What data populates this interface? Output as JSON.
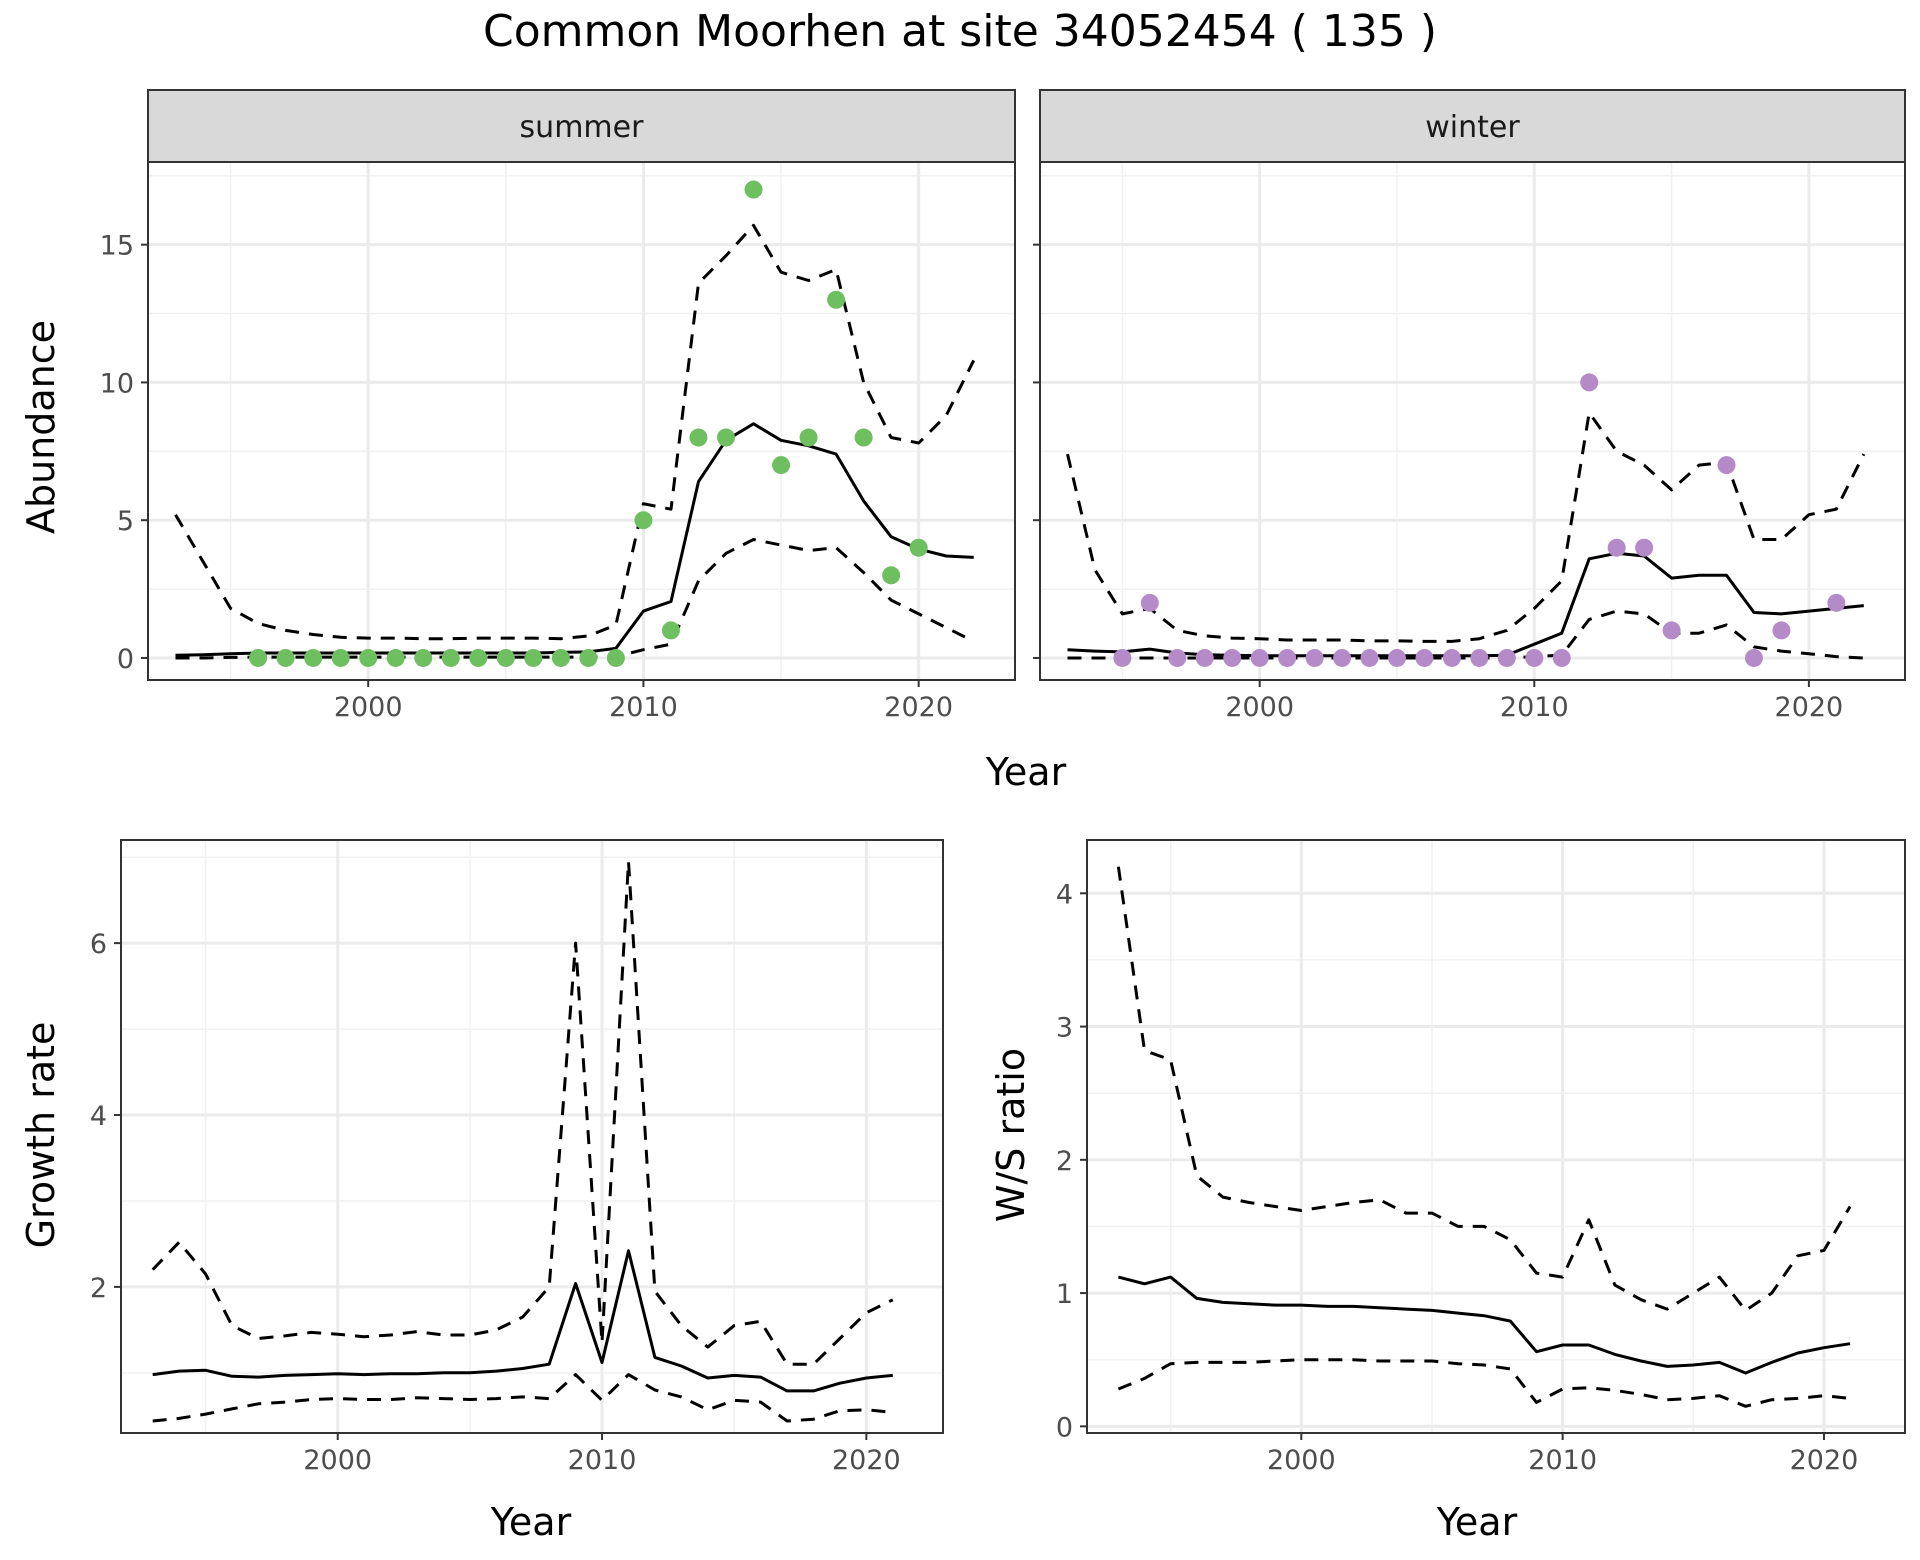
{
  "title": "Common Moorhen at site 34052454 ( 135 )",
  "chart_data": [
    {
      "type": "line",
      "facet": "summer",
      "xlabel": "Year",
      "ylabel": "Abundance",
      "xlim": [
        1992,
        2023.5
      ],
      "ylim": [
        -0.8,
        18
      ],
      "x_ticks": [
        2000,
        2010,
        2020
      ],
      "y_ticks": [
        0,
        5,
        10,
        15
      ],
      "grid": true,
      "point_color": "#6dbf5f",
      "fit": {
        "x": [
          1993,
          1994,
          1995,
          1996,
          1997,
          1998,
          1999,
          2000,
          2001,
          2002,
          2003,
          2004,
          2005,
          2006,
          2007,
          2008,
          2009,
          2010,
          2011,
          2012,
          2013,
          2014,
          2015,
          2016,
          2017,
          2018,
          2019,
          2020,
          2021,
          2022
        ],
        "y": [
          0.1,
          0.12,
          0.15,
          0.18,
          0.18,
          0.18,
          0.18,
          0.18,
          0.18,
          0.18,
          0.18,
          0.18,
          0.18,
          0.18,
          0.2,
          0.22,
          0.35,
          1.7,
          2.05,
          6.4,
          7.9,
          8.5,
          7.9,
          7.7,
          7.4,
          5.7,
          4.4,
          3.95,
          3.7,
          3.65
        ]
      },
      "upper": {
        "x": [
          1993,
          1994,
          1995,
          1996,
          1997,
          1998,
          1999,
          2000,
          2001,
          2002,
          2003,
          2004,
          2005,
          2006,
          2007,
          2008,
          2009,
          2010,
          2011,
          2012,
          2013,
          2014,
          2015,
          2016,
          2017,
          2018,
          2019,
          2020,
          2021,
          2022
        ],
        "y": [
          5.2,
          3.5,
          1.8,
          1.25,
          1.0,
          0.85,
          0.75,
          0.72,
          0.72,
          0.7,
          0.7,
          0.72,
          0.72,
          0.72,
          0.7,
          0.8,
          1.2,
          5.6,
          5.4,
          13.6,
          14.6,
          15.7,
          14.0,
          13.7,
          14.1,
          10.0,
          8.0,
          7.8,
          8.8,
          10.8
        ]
      },
      "lower": {
        "x": [
          1993,
          1994,
          1995,
          1996,
          1997,
          1998,
          1999,
          2000,
          2001,
          2002,
          2003,
          2004,
          2005,
          2006,
          2007,
          2008,
          2009,
          2010,
          2011,
          2012,
          2013,
          2014,
          2015,
          2016,
          2017,
          2018,
          2019,
          2020,
          2021,
          2022
        ],
        "y": [
          0.0,
          0.0,
          0.02,
          0.03,
          0.03,
          0.03,
          0.03,
          0.03,
          0.03,
          0.03,
          0.03,
          0.03,
          0.03,
          0.03,
          0.03,
          0.03,
          0.05,
          0.3,
          0.5,
          2.8,
          3.8,
          4.3,
          4.1,
          3.9,
          4.0,
          3.1,
          2.1,
          1.6,
          1.1,
          0.6
        ]
      },
      "points": {
        "x": [
          1996,
          1997,
          1998,
          1999,
          2000,
          2001,
          2002,
          2003,
          2004,
          2005,
          2006,
          2007,
          2008,
          2009,
          2010,
          2011,
          2012,
          2013,
          2014,
          2015,
          2016,
          2017,
          2018,
          2019,
          2020
        ],
        "y": [
          0,
          0,
          0,
          0,
          0,
          0,
          0,
          0,
          0,
          0,
          0,
          0,
          0,
          0,
          5,
          1,
          8,
          8,
          17,
          7,
          8,
          13,
          8,
          3,
          4
        ]
      }
    },
    {
      "type": "line",
      "facet": "winter",
      "xlabel": "Year",
      "ylabel": "Abundance",
      "xlim": [
        1992,
        2023.5
      ],
      "ylim": [
        -0.8,
        18
      ],
      "x_ticks": [
        2000,
        2010,
        2020
      ],
      "y_ticks": [
        0,
        5,
        10,
        15
      ],
      "grid": true,
      "point_color": "#b58ac8",
      "fit": {
        "x": [
          1993,
          1994,
          1995,
          1996,
          1997,
          1998,
          1999,
          2000,
          2001,
          2002,
          2003,
          2004,
          2005,
          2006,
          2007,
          2008,
          2009,
          2010,
          2011,
          2012,
          2013,
          2014,
          2015,
          2016,
          2017,
          2018,
          2019,
          2020,
          2021,
          2022
        ],
        "y": [
          0.3,
          0.25,
          0.22,
          0.32,
          0.18,
          0.12,
          0.1,
          0.08,
          0.08,
          0.08,
          0.08,
          0.08,
          0.08,
          0.08,
          0.08,
          0.08,
          0.1,
          0.5,
          0.9,
          3.6,
          3.8,
          3.7,
          2.9,
          3.0,
          3.0,
          1.65,
          1.6,
          1.7,
          1.8,
          1.9
        ]
      },
      "upper": {
        "x": [
          1993,
          1994,
          1995,
          1996,
          1997,
          1998,
          1999,
          2000,
          2001,
          2002,
          2003,
          2004,
          2005,
          2006,
          2007,
          2008,
          2009,
          2010,
          2011,
          2012,
          2013,
          2014,
          2015,
          2016,
          2017,
          2018,
          2019,
          2020,
          2021,
          2022
        ],
        "y": [
          7.4,
          3.2,
          1.6,
          1.8,
          1.0,
          0.8,
          0.72,
          0.7,
          0.65,
          0.65,
          0.65,
          0.62,
          0.62,
          0.6,
          0.6,
          0.7,
          1.0,
          1.8,
          2.8,
          8.9,
          7.5,
          7.0,
          6.1,
          7.0,
          7.1,
          4.3,
          4.3,
          5.2,
          5.4,
          7.4
        ]
      },
      "lower": {
        "x": [
          1993,
          1994,
          1995,
          1996,
          1997,
          1998,
          1999,
          2000,
          2001,
          2002,
          2003,
          2004,
          2005,
          2006,
          2007,
          2008,
          2009,
          2010,
          2011,
          2012,
          2013,
          2014,
          2015,
          2016,
          2017,
          2018,
          2019,
          2020,
          2021,
          2022
        ],
        "y": [
          0.0,
          0.0,
          0.0,
          0.0,
          0.0,
          0.0,
          0.0,
          0.0,
          0.0,
          0.0,
          0.0,
          0.0,
          0.0,
          0.0,
          0.0,
          0.0,
          0.0,
          0.05,
          0.1,
          1.4,
          1.7,
          1.6,
          0.9,
          0.9,
          1.2,
          0.4,
          0.25,
          0.15,
          0.05,
          0.0
        ]
      },
      "points": {
        "x": [
          1995,
          1996,
          1997,
          1998,
          1999,
          2000,
          2001,
          2002,
          2003,
          2004,
          2005,
          2006,
          2007,
          2008,
          2009,
          2010,
          2011,
          2012,
          2013,
          2014,
          2015,
          2017,
          2018,
          2019,
          2021
        ],
        "y": [
          0,
          2,
          0,
          0,
          0,
          0,
          0,
          0,
          0,
          0,
          0,
          0,
          0,
          0,
          0,
          0,
          0,
          10,
          4,
          4,
          1,
          7,
          0,
          1,
          2
        ]
      }
    },
    {
      "type": "line",
      "xlabel": "Year",
      "ylabel": "Growth rate",
      "xlim": [
        1991.8,
        2022.9
      ],
      "ylim": [
        0.3,
        7.2
      ],
      "x_ticks": [
        2000,
        2010,
        2020
      ],
      "y_ticks": [
        2,
        4,
        6
      ],
      "grid": true,
      "fit": {
        "x": [
          1993,
          1994,
          1995,
          1996,
          1997,
          1998,
          1999,
          2000,
          2001,
          2002,
          2003,
          2004,
          2005,
          2006,
          2007,
          2008,
          2009,
          2010,
          2011,
          2012,
          2013,
          2014,
          2015,
          2016,
          2017,
          2018,
          2019,
          2020,
          2021
        ],
        "y": [
          0.98,
          1.02,
          1.03,
          0.96,
          0.95,
          0.97,
          0.98,
          0.99,
          0.98,
          0.99,
          0.99,
          1.0,
          1.0,
          1.02,
          1.05,
          1.1,
          2.04,
          1.12,
          2.42,
          1.18,
          1.08,
          0.94,
          0.97,
          0.95,
          0.79,
          0.79,
          0.88,
          0.94,
          0.97
        ]
      },
      "upper": {
        "x": [
          1993,
          1994,
          1995,
          1996,
          1997,
          1998,
          1999,
          2000,
          2001,
          2002,
          2003,
          2004,
          2005,
          2006,
          2007,
          2008,
          2009,
          2010,
          2011,
          2012,
          2013,
          2014,
          2015,
          2016,
          2017,
          2018,
          2019,
          2020,
          2021
        ],
        "y": [
          2.2,
          2.52,
          2.15,
          1.55,
          1.4,
          1.43,
          1.47,
          1.45,
          1.42,
          1.44,
          1.48,
          1.44,
          1.44,
          1.5,
          1.65,
          2.0,
          6.0,
          1.35,
          6.95,
          1.95,
          1.55,
          1.3,
          1.55,
          1.6,
          1.1,
          1.1,
          1.4,
          1.7,
          1.85
        ]
      },
      "lower": {
        "x": [
          1993,
          1994,
          1995,
          1996,
          1997,
          1998,
          1999,
          2000,
          2001,
          2002,
          2003,
          2004,
          2005,
          2006,
          2007,
          2008,
          2009,
          2010,
          2011,
          2012,
          2013,
          2014,
          2015,
          2016,
          2017,
          2018,
          2019,
          2020,
          2021
        ],
        "y": [
          0.44,
          0.47,
          0.52,
          0.58,
          0.64,
          0.66,
          0.69,
          0.7,
          0.69,
          0.69,
          0.71,
          0.7,
          0.69,
          0.7,
          0.72,
          0.7,
          0.98,
          0.68,
          0.98,
          0.8,
          0.72,
          0.57,
          0.68,
          0.66,
          0.44,
          0.46,
          0.56,
          0.57,
          0.54
        ]
      }
    },
    {
      "type": "line",
      "xlabel": "Year",
      "ylabel": "W/S ratio",
      "xlim": [
        1991.8,
        2023.1
      ],
      "ylim": [
        -0.05,
        4.4
      ],
      "x_ticks": [
        2000,
        2010,
        2020
      ],
      "y_ticks": [
        0,
        1,
        2,
        3,
        4
      ],
      "grid": true,
      "fit": {
        "x": [
          1993,
          1994,
          1995,
          1996,
          1997,
          1998,
          1999,
          2000,
          2001,
          2002,
          2003,
          2004,
          2005,
          2006,
          2007,
          2008,
          2009,
          2010,
          2011,
          2012,
          2013,
          2014,
          2015,
          2016,
          2017,
          2018,
          2019,
          2020,
          2021
        ],
        "y": [
          1.12,
          1.07,
          1.12,
          0.96,
          0.93,
          0.92,
          0.91,
          0.91,
          0.9,
          0.9,
          0.89,
          0.88,
          0.87,
          0.85,
          0.83,
          0.79,
          0.56,
          0.61,
          0.61,
          0.54,
          0.49,
          0.45,
          0.46,
          0.48,
          0.4,
          0.48,
          0.55,
          0.59,
          0.62
        ]
      },
      "upper": {
        "x": [
          1993,
          1994,
          1995,
          1996,
          1997,
          1998,
          1999,
          2000,
          2001,
          2002,
          2003,
          2004,
          2005,
          2006,
          2007,
          2008,
          2009,
          2010,
          2011,
          2012,
          2013,
          2014,
          2015,
          2016,
          2017,
          2018,
          2019,
          2020,
          2021
        ],
        "y": [
          4.2,
          2.82,
          2.75,
          1.88,
          1.72,
          1.68,
          1.65,
          1.62,
          1.65,
          1.68,
          1.7,
          1.6,
          1.6,
          1.5,
          1.5,
          1.4,
          1.15,
          1.12,
          1.55,
          1.06,
          0.95,
          0.88,
          1.0,
          1.12,
          0.87,
          1.0,
          1.28,
          1.32,
          1.65
        ]
      },
      "lower": {
        "x": [
          1993,
          1994,
          1995,
          1996,
          1997,
          1998,
          1999,
          2000,
          2001,
          2002,
          2003,
          2004,
          2005,
          2006,
          2007,
          2008,
          2009,
          2010,
          2011,
          2012,
          2013,
          2014,
          2015,
          2016,
          2017,
          2018,
          2019,
          2020,
          2021
        ],
        "y": [
          0.28,
          0.36,
          0.47,
          0.48,
          0.48,
          0.48,
          0.49,
          0.5,
          0.5,
          0.5,
          0.49,
          0.49,
          0.49,
          0.47,
          0.46,
          0.43,
          0.18,
          0.28,
          0.29,
          0.27,
          0.24,
          0.2,
          0.21,
          0.23,
          0.15,
          0.2,
          0.21,
          0.23,
          0.21
        ]
      }
    }
  ]
}
